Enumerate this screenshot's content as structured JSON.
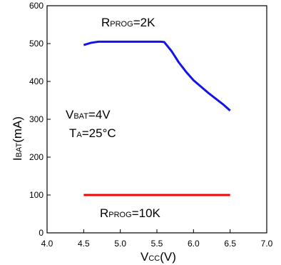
{
  "chart_data": {
    "type": "line",
    "xlabel": {
      "main": "V",
      "sub": "CC",
      "unit": "(V)"
    },
    "ylabel": {
      "main": "I",
      "sub": "BAT",
      "unit": "(mA)"
    },
    "xlim": [
      4.0,
      7.0
    ],
    "ylim": [
      0,
      600
    ],
    "x_ticks": [
      "4.0",
      "4.5",
      "5.0",
      "5.5",
      "6.0",
      "6.5",
      "7.0"
    ],
    "y_ticks": [
      "0",
      "100",
      "200",
      "300",
      "400",
      "500",
      "600"
    ],
    "grid": false,
    "series": [
      {
        "color": "#1414e6",
        "x": [
          4.5,
          4.6,
          4.7,
          4.8,
          5.0,
          5.2,
          5.4,
          5.55,
          5.6,
          5.7,
          5.8,
          5.9,
          6.0,
          6.2,
          6.4,
          6.5
        ],
        "y": [
          496,
          502,
          505,
          505,
          505,
          505,
          505,
          505,
          504,
          480,
          450,
          425,
          403,
          370,
          340,
          323
        ]
      },
      {
        "color": "#ff0000",
        "x": [
          4.5,
          5.0,
          5.5,
          6.0,
          6.5
        ],
        "y": [
          100,
          100,
          100,
          100,
          100
        ]
      }
    ],
    "annotations": {
      "rprog_2k": {
        "main": "R",
        "sub": "PROG",
        "tail": "=2K"
      },
      "rprog_10k": {
        "main": "R",
        "sub": "PROG",
        "tail": "=10K"
      },
      "vbat": {
        "main": "V",
        "sub": "BAT",
        "tail": "=4V"
      },
      "ta": {
        "main": "T",
        "sub": "A",
        "tail": "=25°C"
      }
    }
  }
}
